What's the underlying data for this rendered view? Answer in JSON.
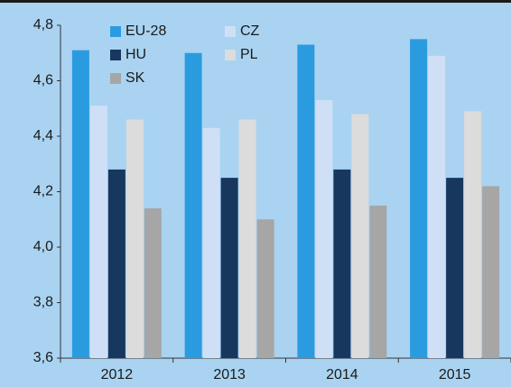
{
  "chart_data": {
    "type": "bar",
    "categories": [
      "2012",
      "2013",
      "2014",
      "2015"
    ],
    "series": [
      {
        "name": "EU-28",
        "color": "#2b9be0",
        "values": [
          4.71,
          4.7,
          4.73,
          4.75
        ]
      },
      {
        "name": "CZ",
        "color": "#cfe0f6",
        "values": [
          4.51,
          4.43,
          4.53,
          4.69
        ]
      },
      {
        "name": "HU",
        "color": "#17375e",
        "values": [
          4.28,
          4.25,
          4.28,
          4.25
        ]
      },
      {
        "name": "PL",
        "color": "#dcdcdc",
        "values": [
          4.46,
          4.46,
          4.48,
          4.49
        ]
      },
      {
        "name": "SK",
        "color": "#a6a6a6",
        "values": [
          4.14,
          4.1,
          4.15,
          4.22
        ]
      }
    ],
    "ylim": [
      3.6,
      4.8
    ],
    "yticks": [
      {
        "value": 3.6,
        "label": "3,6"
      },
      {
        "value": 3.8,
        "label": "3,8"
      },
      {
        "value": 4.0,
        "label": "4,0"
      },
      {
        "value": 4.2,
        "label": "4,2"
      },
      {
        "value": 4.4,
        "label": "4,4"
      },
      {
        "value": 4.6,
        "label": "4,6"
      },
      {
        "value": 4.8,
        "label": "4,8"
      }
    ],
    "grid": false,
    "legend": "top"
  }
}
